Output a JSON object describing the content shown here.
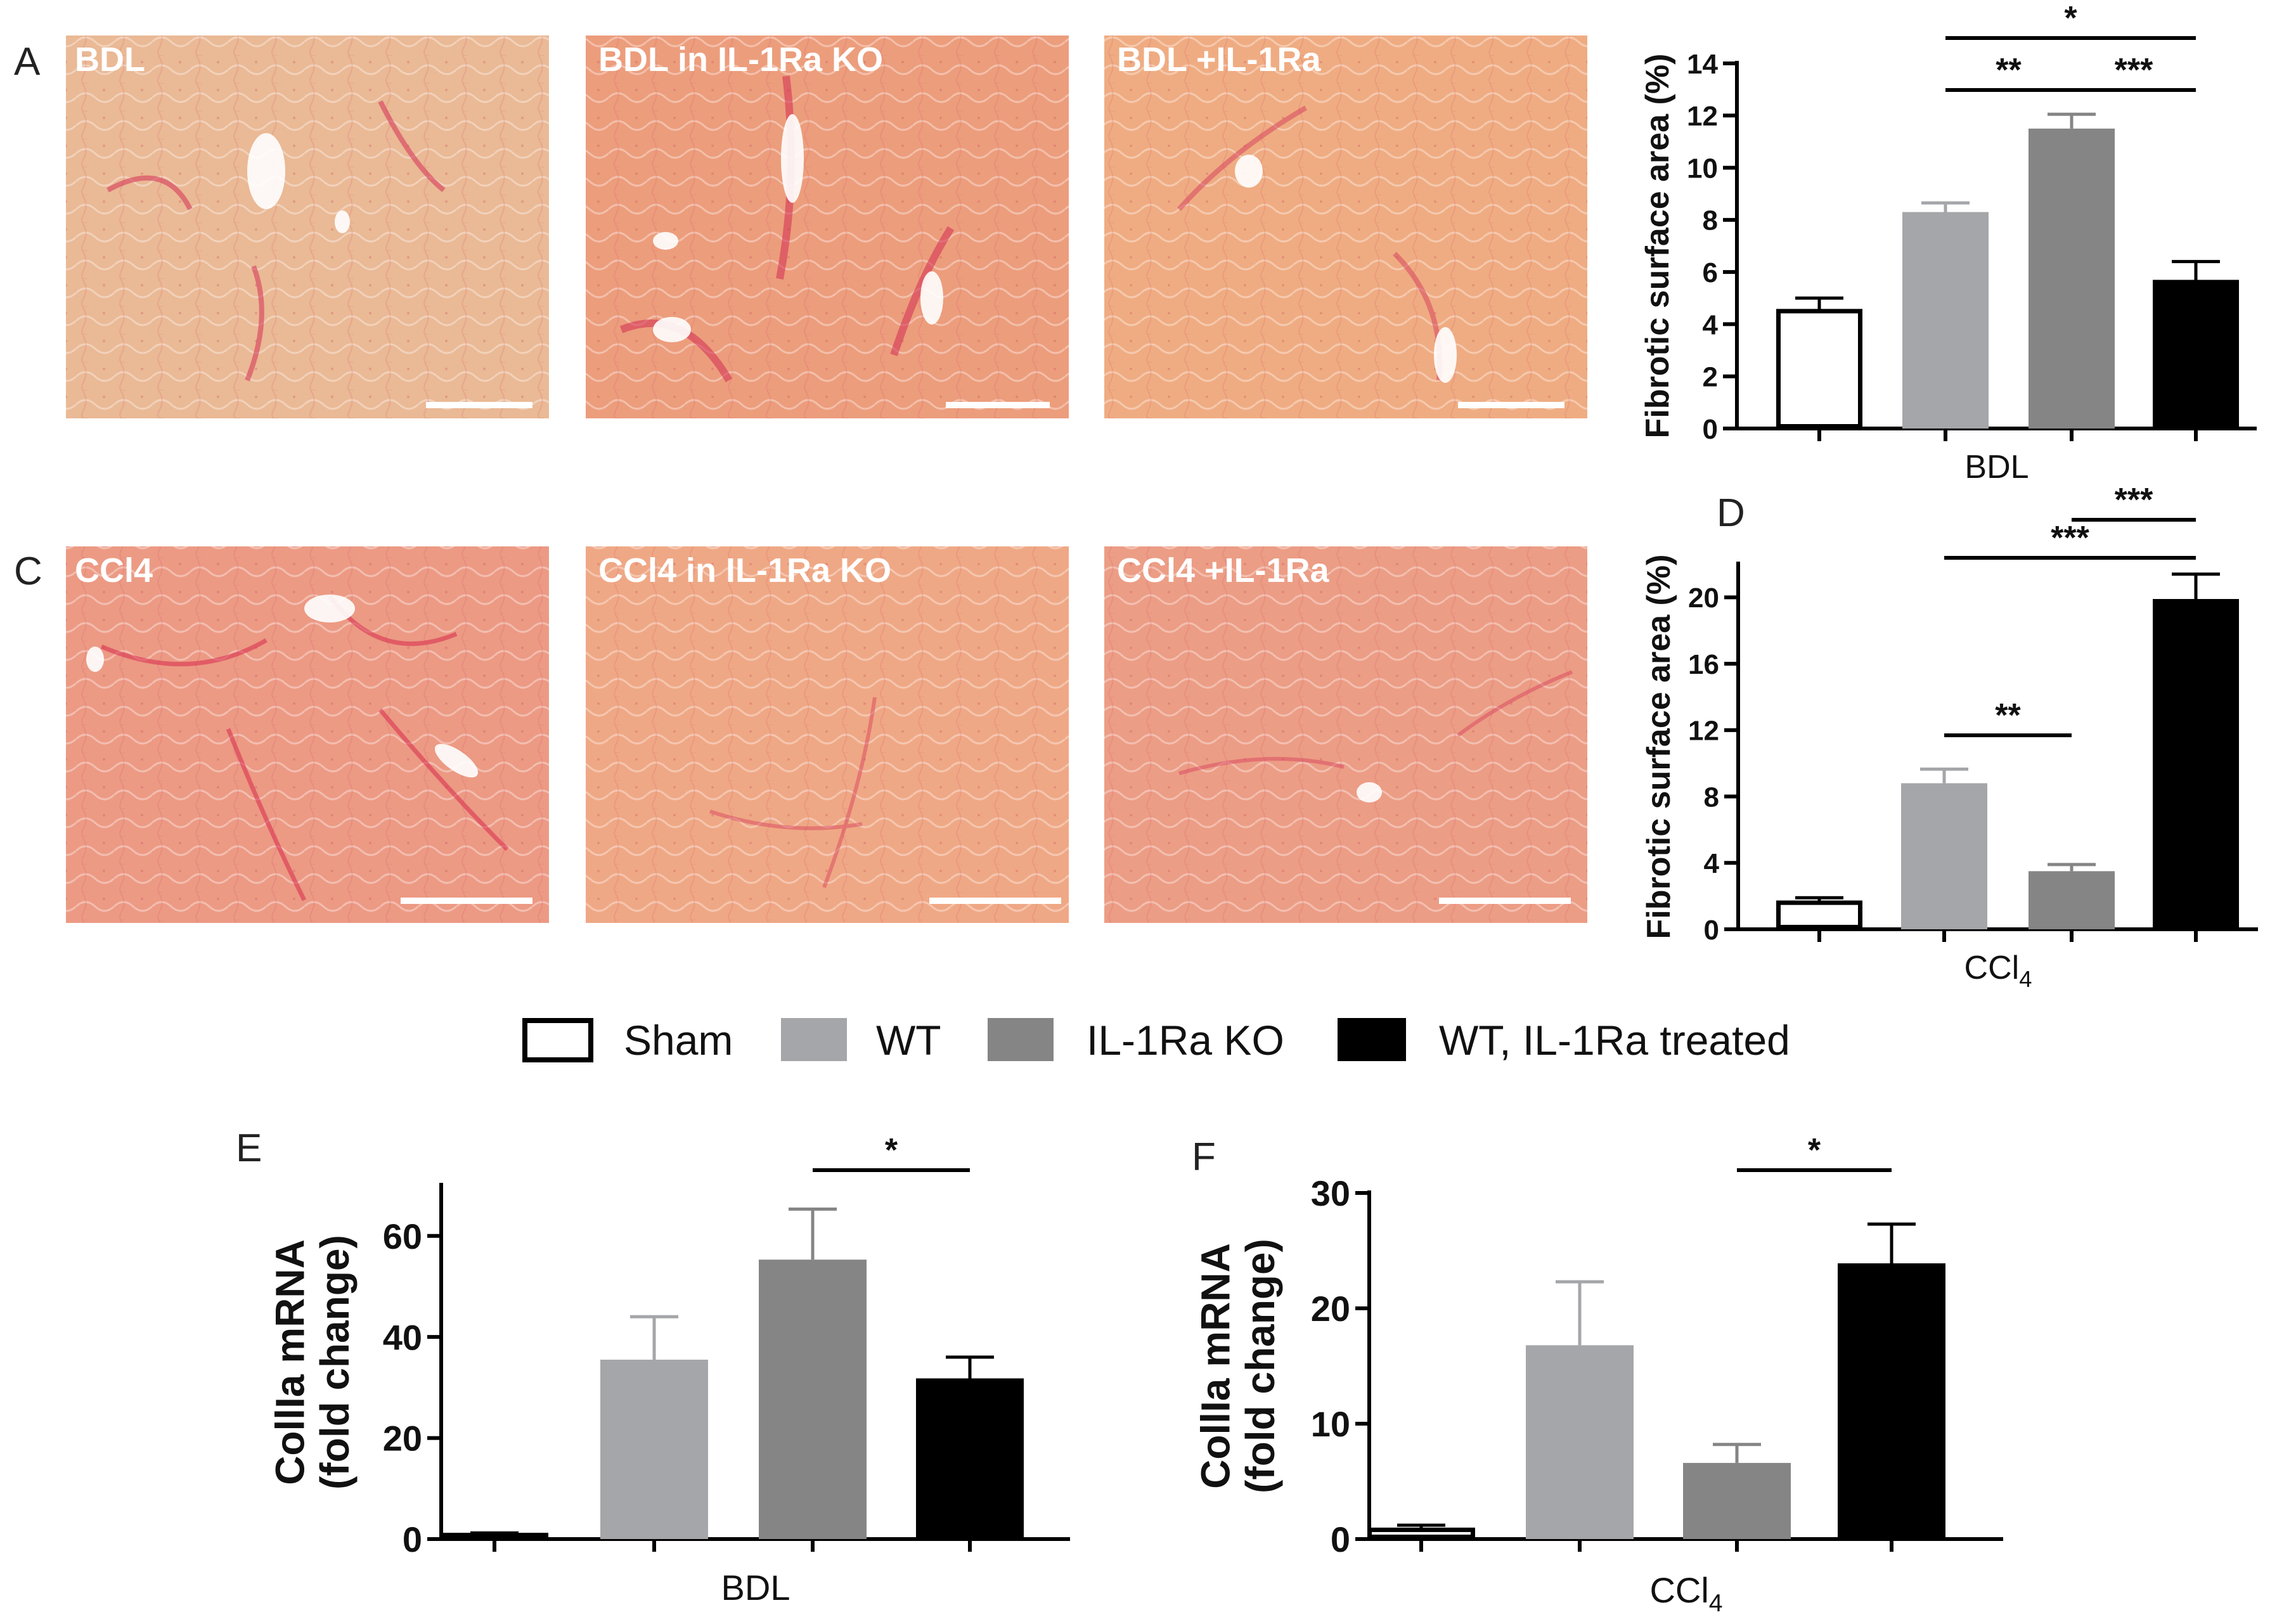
{
  "panels": {
    "A": "A",
    "C": "C",
    "D": "D",
    "E": "E",
    "F": "F"
  },
  "micrographs": {
    "row1": [
      {
        "label": "BDL",
        "tint": "#eab995"
      },
      {
        "label": "BDL in IL-1Ra KO",
        "tint": "#ec9d7c"
      },
      {
        "label": "BDL +IL-1Ra",
        "tint": "#efac82"
      }
    ],
    "row2": [
      {
        "label": "CCl4",
        "tint": "#ec9a84"
      },
      {
        "label": "CCl4 in IL-1Ra KO",
        "tint": "#efa885"
      },
      {
        "label": "CCl4 +IL-1Ra",
        "tint": "#ec9d85"
      }
    ]
  },
  "colors": {
    "sham": "#ffffff",
    "wt": "#a5a6a9",
    "ko": "#858585",
    "treated": "#000000"
  },
  "legend": [
    "Sham",
    "WT",
    "IL-1Ra KO",
    "WT, IL-1Ra treated"
  ],
  "chart_data": [
    {
      "id": "B",
      "type": "bar",
      "categories": [
        "Sham",
        "WT",
        "IL-1Ra KO",
        "WT, IL-1Ra treated"
      ],
      "values": [
        4.5,
        8.3,
        11.5,
        5.7
      ],
      "errors": [
        0.5,
        0.35,
        0.55,
        0.7
      ],
      "ylabel": "Fibrotic surface area (%)",
      "xlabel": "BDL",
      "ylim": [
        0,
        14
      ],
      "yticks": [
        0,
        2,
        4,
        6,
        8,
        10,
        12,
        14
      ],
      "significance": [
        {
          "from": 1,
          "to": 2,
          "label": "**"
        },
        {
          "from": 2,
          "to": 3,
          "label": "***"
        },
        {
          "from": 1,
          "to": 3,
          "label": "*"
        }
      ]
    },
    {
      "id": "D",
      "type": "bar",
      "categories": [
        "Sham",
        "WT",
        "IL-1Ra KO",
        "WT, IL-1Ra treated"
      ],
      "values": [
        1.6,
        8.8,
        3.5,
        19.9
      ],
      "errors": [
        0.3,
        0.85,
        0.4,
        1.5
      ],
      "ylabel": "Fibrotic surface area (%)",
      "xlabel": "CCl4",
      "ylim": [
        0,
        22
      ],
      "yticks": [
        0,
        4,
        8,
        12,
        16,
        20
      ],
      "significance": [
        {
          "from": 1,
          "to": 2,
          "label": "**"
        },
        {
          "from": 1,
          "to": 3,
          "label": "***"
        },
        {
          "from": 2,
          "to": 3,
          "label": "***"
        }
      ]
    },
    {
      "id": "E",
      "type": "bar",
      "categories": [
        "Sham",
        "WT",
        "IL-1Ra KO",
        "WT, IL-1Ra treated"
      ],
      "values": [
        0.8,
        35.5,
        55.3,
        31.8
      ],
      "errors": [
        0.4,
        8.5,
        10.0,
        4.2
      ],
      "ylabel": "CollIa mRNA (fold change)",
      "xlabel": "BDL",
      "ylim": [
        0,
        70
      ],
      "yticks": [
        0,
        20,
        40,
        60
      ],
      "significance": [
        {
          "from": 2,
          "to": 3,
          "label": "*"
        }
      ]
    },
    {
      "id": "F",
      "type": "bar",
      "categories": [
        "Sham",
        "WT",
        "IL-1Ra KO",
        "WT, IL-1Ra treated"
      ],
      "values": [
        0.8,
        16.8,
        6.6,
        23.9
      ],
      "errors": [
        0.4,
        5.5,
        1.6,
        3.4
      ],
      "ylabel": "CollIa mRNA (fold change)",
      "xlabel": "CCl4",
      "ylim": [
        0,
        30
      ],
      "yticks": [
        0,
        10,
        20,
        30
      ],
      "significance": [
        {
          "from": 2,
          "to": 3,
          "label": "*"
        }
      ]
    }
  ]
}
